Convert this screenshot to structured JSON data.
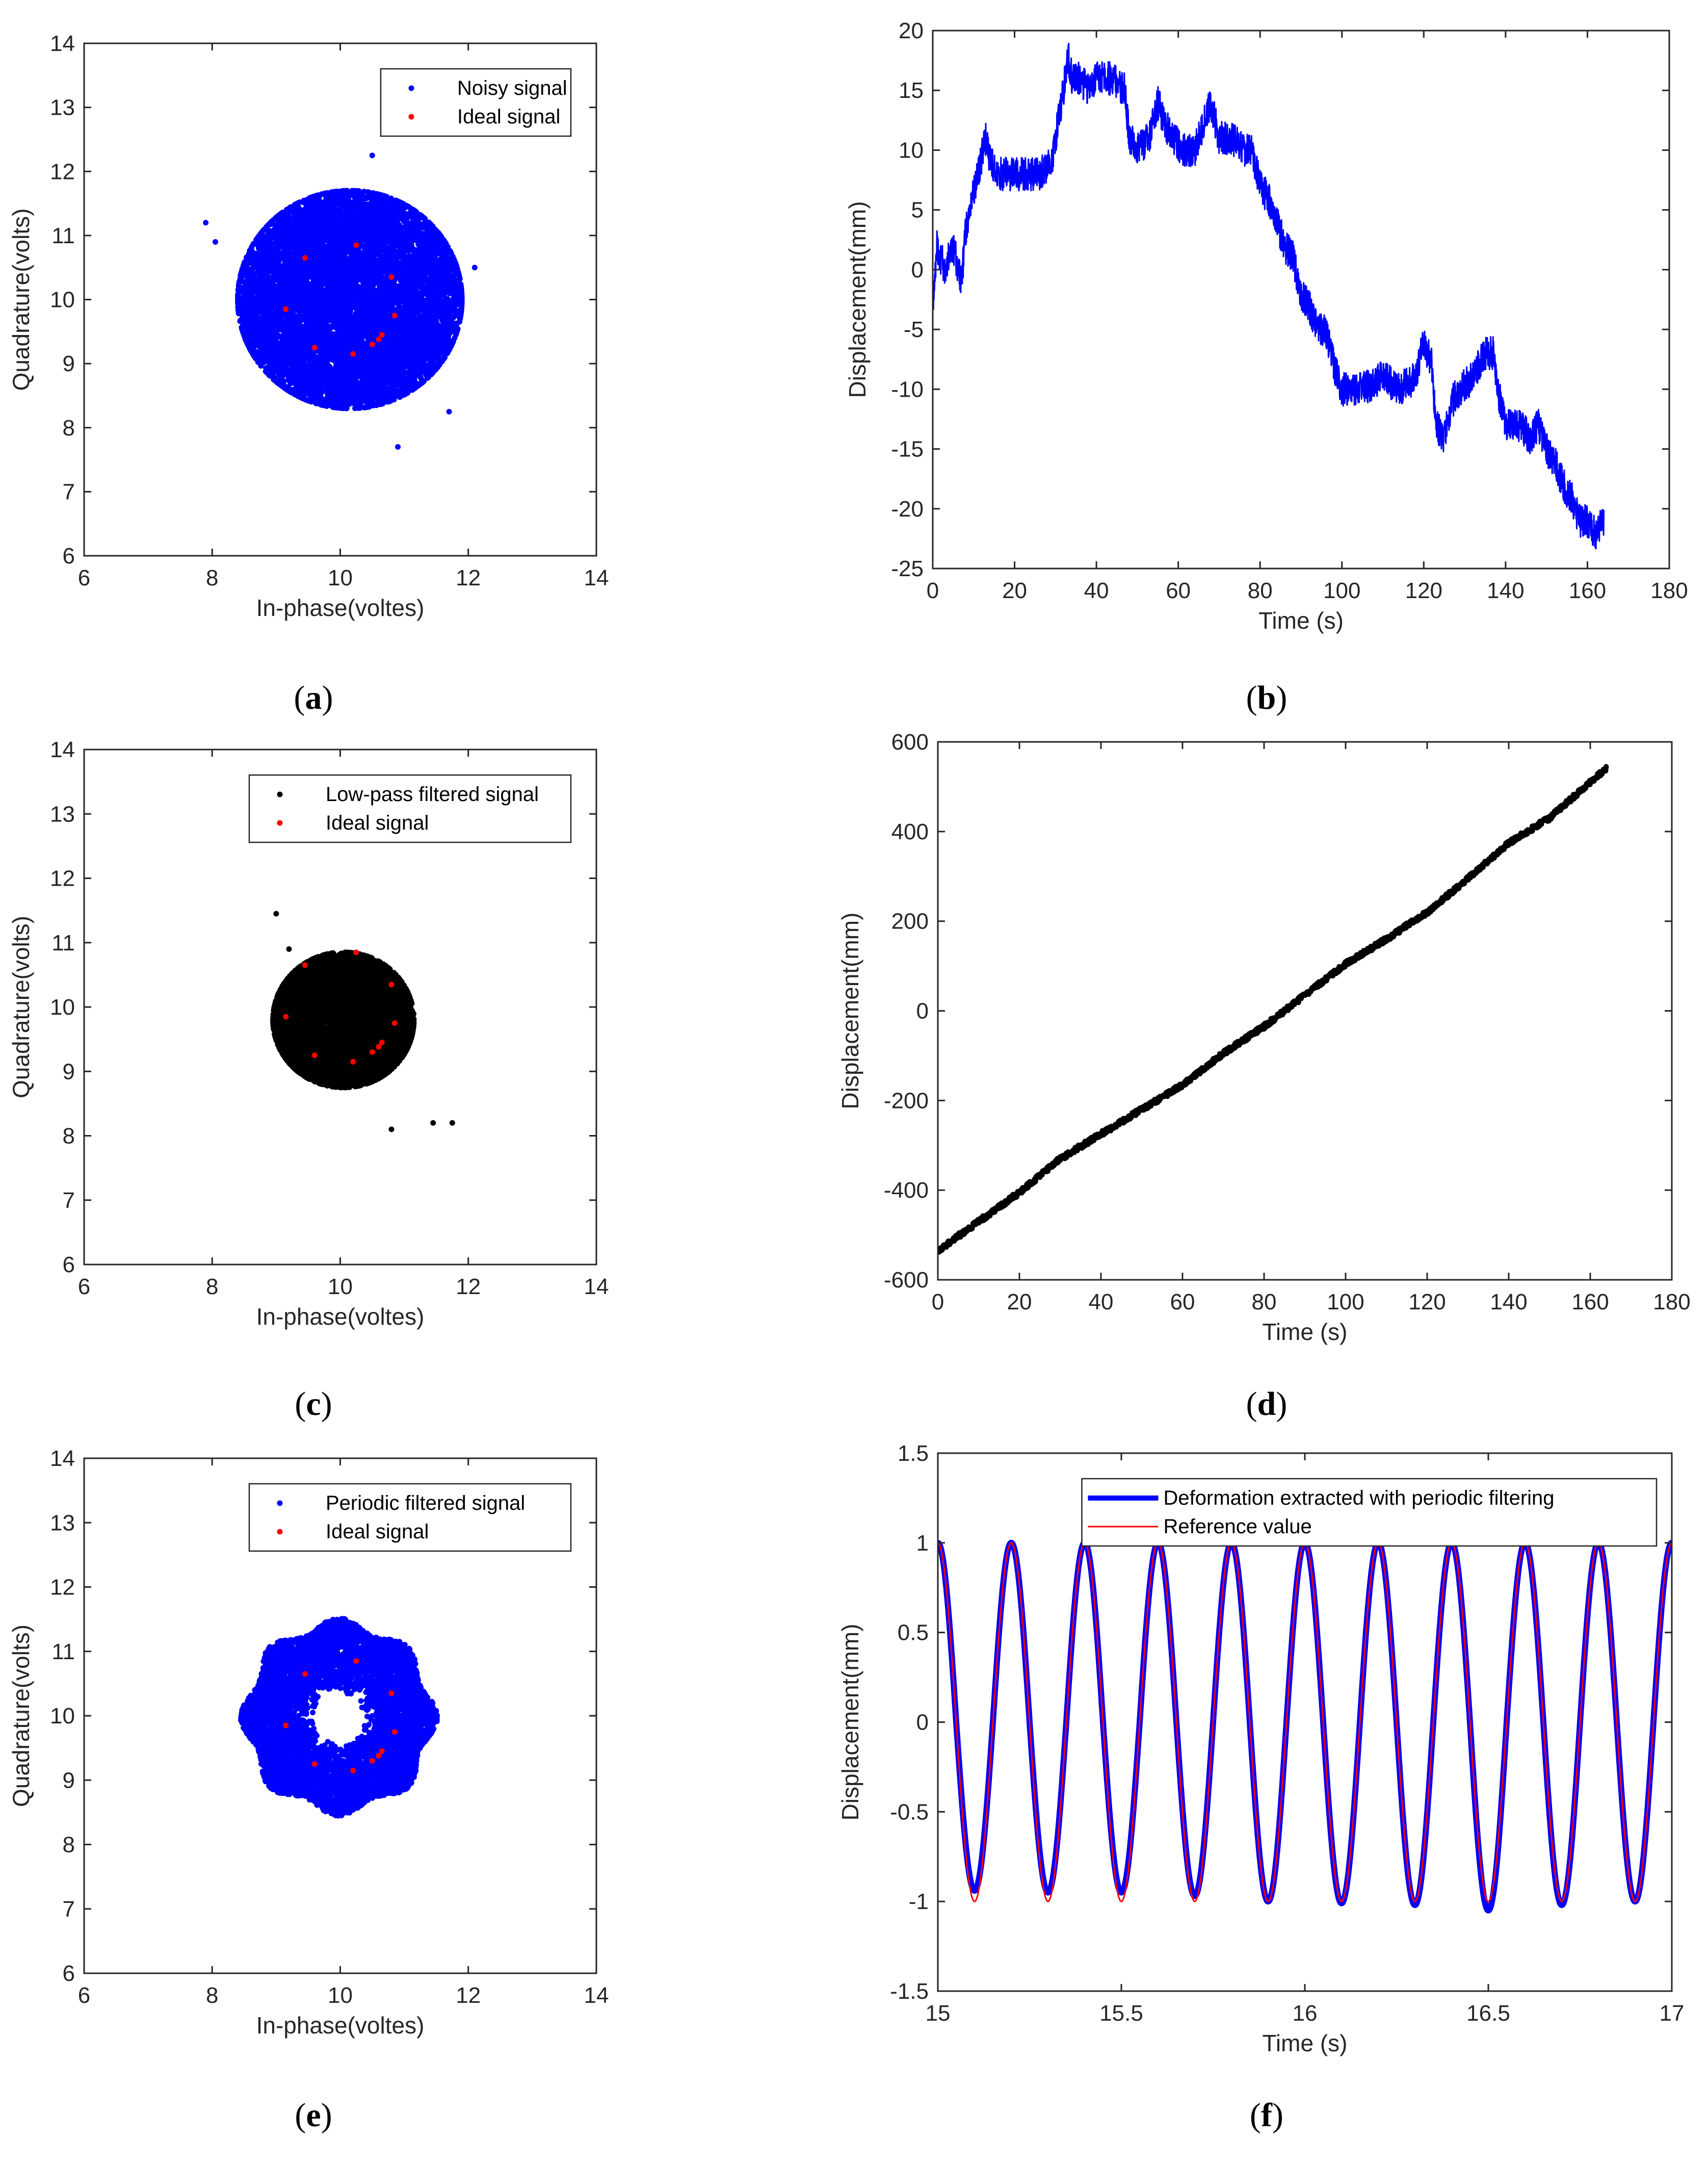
{
  "figure": {
    "panels": [
      "a",
      "b",
      "c",
      "d",
      "e",
      "f"
    ]
  },
  "chart_data": [
    {
      "id": "a",
      "type": "scatter",
      "caption": {
        "open": "(",
        "letter": "a",
        "close": ")"
      },
      "xlabel": "In-phase(voltes)",
      "ylabel": "Quadrature(volts)",
      "xlim": [
        6,
        14
      ],
      "ylim": [
        6,
        14
      ],
      "xticks": [
        6,
        8,
        10,
        12,
        14
      ],
      "yticks": [
        6,
        7,
        8,
        9,
        10,
        11,
        12,
        13,
        14
      ],
      "legend": {
        "position": "top-right",
        "entries": [
          "Noisy signal",
          "Ideal signal"
        ]
      },
      "series": [
        {
          "name": "Noisy signal",
          "color": "#0000ff",
          "kind": "cloud",
          "center": [
            10.15,
            10.0
          ],
          "radius": 1.75,
          "radius_y": 1.7,
          "count": 9000,
          "outliers": [
            [
              7.9,
              11.2
            ],
            [
              12.1,
              10.5
            ],
            [
              10.5,
              12.25
            ],
            [
              10.9,
              7.7
            ],
            [
              8.05,
              10.9
            ],
            [
              11.7,
              8.25
            ]
          ]
        },
        {
          "name": "Ideal signal",
          "color": "#ff0000",
          "kind": "points",
          "points": [
            [
              9.45,
              10.65
            ],
            [
              10.25,
              10.85
            ],
            [
              10.8,
              10.35
            ],
            [
              9.15,
              9.85
            ],
            [
              10.85,
              9.75
            ],
            [
              9.6,
              9.25
            ],
            [
              10.2,
              9.15
            ],
            [
              10.5,
              9.3
            ],
            [
              10.6,
              9.38
            ],
            [
              10.65,
              9.45
            ]
          ]
        }
      ]
    },
    {
      "id": "b",
      "type": "line",
      "caption": {
        "open": "(",
        "letter": "b",
        "close": ")"
      },
      "xlabel": "Time (s)",
      "ylabel": "Displacement(mm)",
      "xlim": [
        0,
        180
      ],
      "ylim": [
        -25,
        20
      ],
      "xticks": [
        0,
        20,
        40,
        60,
        80,
        100,
        120,
        140,
        160,
        180
      ],
      "yticks": [
        -25,
        -20,
        -15,
        -10,
        -5,
        0,
        5,
        10,
        15,
        20
      ],
      "series": [
        {
          "name": "Displacement",
          "color": "#0000ff",
          "x": [
            0,
            1,
            3,
            5,
            7,
            8,
            9,
            11,
            13,
            14,
            16,
            20,
            26,
            29,
            31,
            32,
            33,
            34,
            36,
            38,
            40,
            44,
            47,
            48,
            50,
            53,
            55,
            57,
            59,
            61,
            64,
            66,
            68,
            70,
            73,
            76,
            78,
            80,
            82,
            84,
            86,
            88,
            90,
            92,
            94,
            96,
            98,
            100,
            105,
            110,
            114,
            118,
            120,
            122,
            123,
            125,
            127,
            129,
            132,
            135,
            137,
            138,
            140,
            143,
            146,
            148,
            150,
            152,
            154,
            156,
            158,
            160,
            162,
            164
          ],
          "y": [
            -3,
            2,
            0,
            2,
            -1,
            3,
            5,
            8,
            11,
            9,
            8,
            8,
            8,
            9,
            13,
            15,
            18,
            16,
            16,
            15,
            16,
            16,
            15,
            11,
            10,
            11,
            14,
            12,
            11,
            10,
            10,
            12,
            14,
            11,
            11,
            10,
            10,
            7,
            6,
            4,
            2,
            1,
            -2,
            -3,
            -5,
            -5,
            -8,
            -10,
            -10,
            -9,
            -10,
            -9,
            -6,
            -8,
            -13,
            -14,
            -11,
            -10,
            -9,
            -7,
            -7,
            -10,
            -13,
            -13,
            -14,
            -13,
            -15,
            -16,
            -18,
            -19,
            -21,
            -21,
            -22,
            -21
          ],
          "noise": 1.4
        }
      ]
    },
    {
      "id": "c",
      "type": "scatter",
      "caption": {
        "open": "(",
        "letter": "c",
        "close": ")"
      },
      "xlabel": "In-phase(voltes)",
      "ylabel": "Quadrature(volts)",
      "xlim": [
        6,
        14
      ],
      "ylim": [
        6,
        14
      ],
      "xticks": [
        6,
        8,
        10,
        12,
        14
      ],
      "yticks": [
        6,
        7,
        8,
        9,
        10,
        11,
        12,
        13,
        14
      ],
      "legend": {
        "position": "top-right",
        "entries": [
          "Low-pass filtered signal",
          "Ideal signal"
        ]
      },
      "series": [
        {
          "name": "Low-pass filtered signal",
          "color": "#000000",
          "kind": "cloud",
          "center": [
            10.05,
            9.8
          ],
          "radius": 1.1,
          "radius_y": 1.05,
          "count": 6000,
          "outliers": [
            [
              9.0,
              11.45
            ],
            [
              11.45,
              8.2
            ],
            [
              11.75,
              8.2
            ],
            [
              9.2,
              10.9
            ],
            [
              10.8,
              8.1
            ]
          ]
        },
        {
          "name": "Ideal signal",
          "color": "#ff0000",
          "kind": "points",
          "points": [
            [
              9.45,
              10.65
            ],
            [
              10.25,
              10.85
            ],
            [
              10.8,
              10.35
            ],
            [
              9.15,
              9.85
            ],
            [
              10.85,
              9.75
            ],
            [
              9.6,
              9.25
            ],
            [
              10.2,
              9.15
            ],
            [
              10.5,
              9.3
            ],
            [
              10.6,
              9.38
            ],
            [
              10.65,
              9.45
            ]
          ]
        }
      ]
    },
    {
      "id": "d",
      "type": "line",
      "caption": {
        "open": "(",
        "letter": "d",
        "close": ")"
      },
      "xlabel": "Time (s)",
      "ylabel": "Displacement(mm)",
      "xlim": [
        0,
        180
      ],
      "ylim": [
        -600,
        600
      ],
      "xticks": [
        0,
        20,
        40,
        60,
        80,
        100,
        120,
        140,
        160,
        180
      ],
      "yticks": [
        -600,
        -400,
        -200,
        0,
        200,
        400,
        600
      ],
      "series": [
        {
          "name": "Displacement",
          "color": "#000000",
          "x": [
            0,
            10,
            20,
            30,
            40,
            50,
            60,
            70,
            80,
            90,
            100,
            110,
            120,
            130,
            140,
            150,
            160,
            164
          ],
          "y": [
            -535,
            -470,
            -405,
            -330,
            -275,
            -220,
            -165,
            -95,
            -35,
            35,
            105,
            160,
            220,
            295,
            375,
            430,
            510,
            540
          ],
          "noise": 6
        }
      ]
    },
    {
      "id": "e",
      "type": "scatter",
      "caption": {
        "open": "(",
        "letter": "e",
        "close": ")"
      },
      "xlabel": "In-phase(voltes)",
      "ylabel": "Quadrature(volts)",
      "xlim": [
        6,
        14
      ],
      "ylim": [
        6,
        14
      ],
      "xticks": [
        6,
        8,
        10,
        12,
        14
      ],
      "yticks": [
        6,
        7,
        8,
        9,
        10,
        11,
        12,
        13,
        14
      ],
      "legend": {
        "position": "top-right",
        "entries": [
          "Periodic filtered signal",
          "Ideal signal"
        ]
      },
      "series": [
        {
          "name": "Periodic filtered signal",
          "color": "#0000ff",
          "kind": "ring",
          "center": [
            9.98,
            9.98
          ],
          "inner": 0.4,
          "outer": 1.45,
          "count": 7000,
          "outliers": []
        },
        {
          "name": "Ideal signal",
          "color": "#ff0000",
          "kind": "points",
          "points": [
            [
              9.45,
              10.65
            ],
            [
              10.25,
              10.85
            ],
            [
              10.8,
              10.35
            ],
            [
              9.15,
              9.85
            ],
            [
              10.85,
              9.75
            ],
            [
              9.6,
              9.25
            ],
            [
              10.2,
              9.15
            ],
            [
              10.5,
              9.3
            ],
            [
              10.6,
              9.38
            ],
            [
              10.65,
              9.45
            ]
          ]
        }
      ]
    },
    {
      "id": "f",
      "type": "line",
      "caption": {
        "open": "(",
        "letter": "f",
        "close": ")"
      },
      "xlabel": "Time (s)",
      "ylabel": "Displacement(mm)",
      "xlim": [
        15,
        17
      ],
      "ylim": [
        -1.5,
        1.5
      ],
      "xticks": [
        15,
        15.5,
        16,
        16.5,
        17
      ],
      "yticks": [
        -1.5,
        -1,
        -0.5,
        0,
        0.5,
        1,
        1.5
      ],
      "legend": {
        "position": "top-right",
        "entries": [
          "Deformation extracted with periodic filtering",
          "Reference value"
        ]
      },
      "series": [
        {
          "name": "Deformation extracted with periodic filtering",
          "color": "#0000ff",
          "kind": "sine",
          "amplitude": 1.0,
          "frequency": 5,
          "phase": 0,
          "trough_values": [
            -0.94,
            -0.95,
            -0.95,
            -0.97,
            -1.0,
            -1.01,
            -1.02,
            -1.05,
            -1.02,
            -1.0
          ]
        },
        {
          "name": "Reference value",
          "color": "#ff0000",
          "kind": "sine",
          "amplitude": 1.0,
          "frequency": 5,
          "phase": 0
        }
      ]
    }
  ]
}
